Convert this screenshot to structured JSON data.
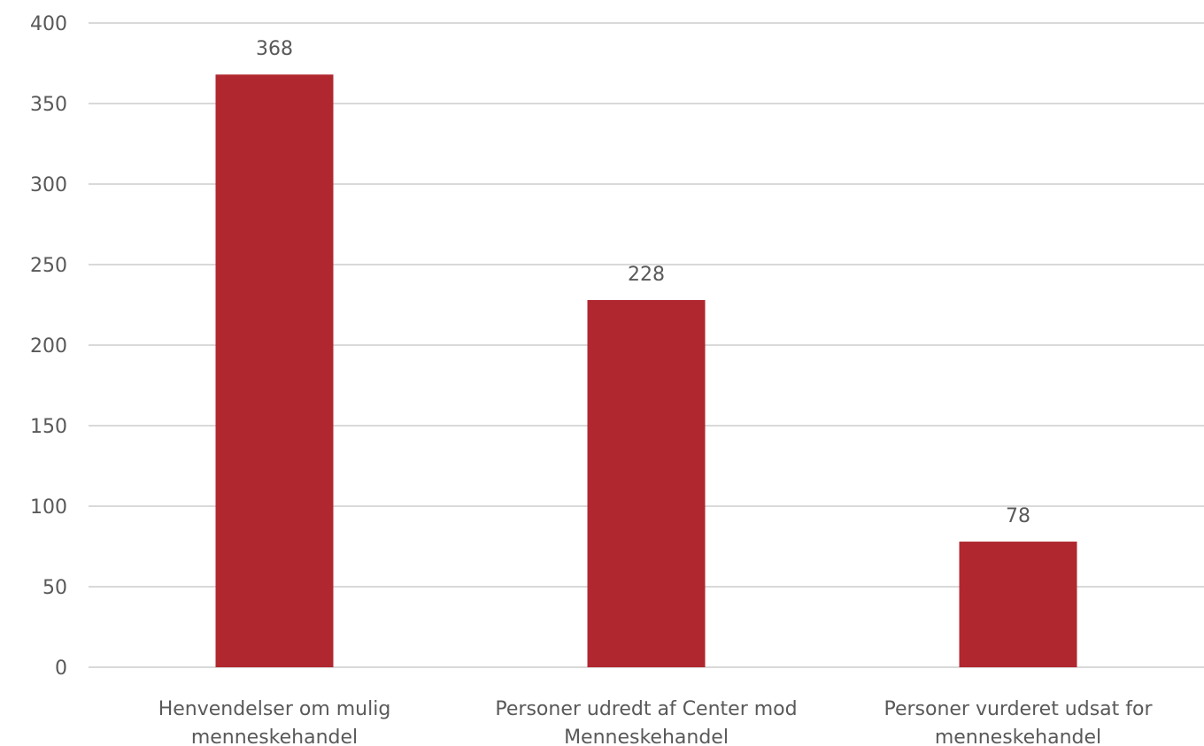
{
  "chart_data": {
    "type": "bar",
    "categories": [
      [
        "Henvendelser om mulig",
        "menneskehandel"
      ],
      [
        "Personer udredt af Center mod",
        "Menneskehandel"
      ],
      [
        "Personer vurderet udsat for",
        "menneskehandel"
      ]
    ],
    "values": [
      368,
      228,
      78
    ],
    "data_labels": [
      "368",
      "228",
      "78"
    ],
    "ylim": [
      0,
      400
    ],
    "yticks": [
      0,
      50,
      100,
      150,
      200,
      250,
      300,
      350,
      400
    ],
    "grid": true,
    "legend": "none",
    "bar_color": "#b0272f",
    "grid_color": "#d9d9d9",
    "text_color": "#595959"
  }
}
